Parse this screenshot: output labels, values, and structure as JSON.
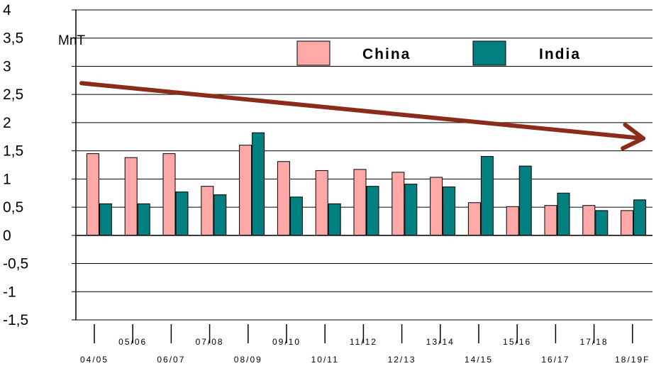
{
  "chart_data": {
    "type": "bar",
    "title": "",
    "xlabel": "",
    "ylabel": "",
    "unit_label": "MnT",
    "ylim": [
      -1.5,
      4
    ],
    "yticks": [
      "4",
      "3,5",
      "3",
      "2,5",
      "2",
      "1,5",
      "1",
      "0,5",
      "0",
      "-0,5",
      "-1",
      "-1,5"
    ],
    "ytick_values": [
      4,
      3.5,
      3,
      2.5,
      2,
      1.5,
      1,
      0.5,
      0,
      -0.5,
      -1,
      -1.5
    ],
    "grid": true,
    "legend_position": "top-right",
    "categories": [
      "04/05",
      "05/06",
      "06/07",
      "07/08",
      "08/09",
      "09/10",
      "10/11",
      "11/12",
      "12/13",
      "13/14",
      "14/15",
      "15/16",
      "16/17",
      "17/18",
      "18/19F"
    ],
    "series": [
      {
        "name": "China",
        "color": "#ffa8a8",
        "values": [
          1.45,
          1.38,
          1.45,
          0.87,
          1.6,
          1.31,
          1.15,
          1.17,
          1.12,
          1.03,
          0.58,
          0.51,
          0.53,
          0.53,
          0.44
        ]
      },
      {
        "name": "India",
        "color": "#008080",
        "values": [
          0.56,
          0.56,
          0.77,
          0.72,
          1.82,
          0.68,
          0.56,
          0.87,
          0.91,
          0.86,
          1.4,
          1.23,
          0.75,
          0.44,
          0.63
        ]
      }
    ],
    "trend_arrow": {
      "color": "#8b2b1a",
      "start": {
        "category": "04/05",
        "value": 2.7
      },
      "end": {
        "category": "18/19F",
        "value": 1.72
      }
    }
  }
}
